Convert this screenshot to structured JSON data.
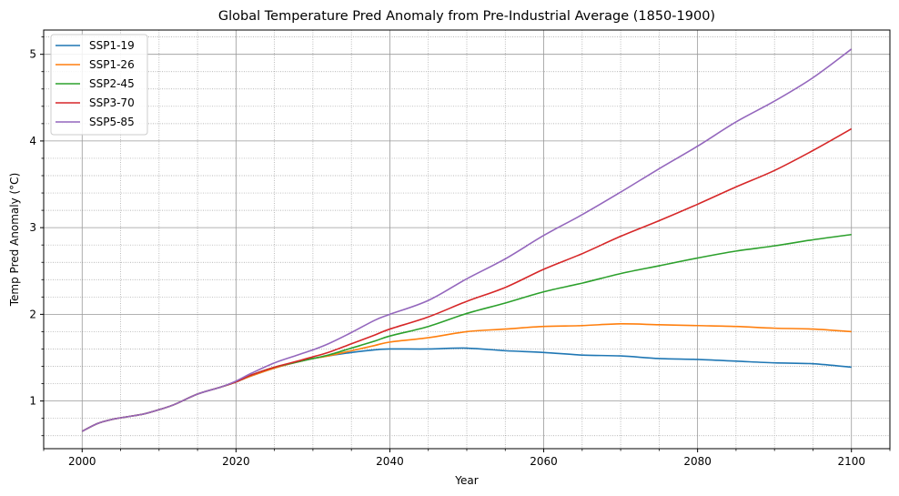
{
  "chart_data": {
    "type": "line",
    "title": "Global Temperature Pred Anomaly from Pre-Industrial Average (1850-1900)",
    "xlabel": "Year",
    "ylabel": "Temp Pred Anomaly (°C)",
    "xlim": [
      1995,
      2105
    ],
    "ylim": [
      0.45,
      5.28
    ],
    "xticks": [
      2000,
      2020,
      2040,
      2060,
      2080,
      2100
    ],
    "yticks": [
      1,
      2,
      3,
      4,
      5
    ],
    "grid": "major solid + minor dotted",
    "legend_position": "top-left",
    "x": [
      2000,
      2002,
      2004,
      2006,
      2008,
      2010,
      2012,
      2015,
      2018,
      2020,
      2022,
      2025,
      2028,
      2030,
      2032,
      2035,
      2038,
      2040,
      2045,
      2050,
      2055,
      2060,
      2065,
      2070,
      2075,
      2080,
      2085,
      2090,
      2095,
      2100
    ],
    "series": [
      {
        "name": "SSP1-19",
        "color": "#1f77b4",
        "values": [
          0.65,
          0.74,
          0.79,
          0.82,
          0.85,
          0.9,
          0.96,
          1.08,
          1.16,
          1.22,
          1.29,
          1.38,
          1.45,
          1.49,
          1.52,
          1.56,
          1.59,
          1.6,
          1.6,
          1.61,
          1.58,
          1.56,
          1.53,
          1.52,
          1.49,
          1.48,
          1.46,
          1.44,
          1.43,
          1.39
        ]
      },
      {
        "name": "SSP1-26",
        "color": "#ff7f0e",
        "values": [
          0.65,
          0.74,
          0.79,
          0.82,
          0.85,
          0.9,
          0.96,
          1.08,
          1.16,
          1.22,
          1.29,
          1.38,
          1.45,
          1.49,
          1.52,
          1.58,
          1.64,
          1.68,
          1.73,
          1.8,
          1.83,
          1.86,
          1.87,
          1.89,
          1.88,
          1.87,
          1.86,
          1.84,
          1.83,
          1.8
        ]
      },
      {
        "name": "SSP2-45",
        "color": "#2ca02c",
        "values": [
          0.65,
          0.74,
          0.79,
          0.82,
          0.85,
          0.9,
          0.96,
          1.08,
          1.16,
          1.22,
          1.3,
          1.39,
          1.45,
          1.49,
          1.53,
          1.61,
          1.69,
          1.75,
          1.86,
          2.01,
          2.13,
          2.26,
          2.36,
          2.47,
          2.56,
          2.65,
          2.73,
          2.79,
          2.86,
          2.92
        ]
      },
      {
        "name": "SSP3-70",
        "color": "#d62728",
        "values": [
          0.65,
          0.74,
          0.79,
          0.82,
          0.85,
          0.9,
          0.96,
          1.08,
          1.16,
          1.22,
          1.3,
          1.39,
          1.46,
          1.51,
          1.56,
          1.66,
          1.76,
          1.83,
          1.97,
          2.15,
          2.31,
          2.52,
          2.7,
          2.9,
          3.08,
          3.27,
          3.47,
          3.66,
          3.89,
          4.14
        ]
      },
      {
        "name": "SSP5-85",
        "color": "#9467bd",
        "values": [
          0.65,
          0.74,
          0.79,
          0.82,
          0.85,
          0.9,
          0.96,
          1.08,
          1.16,
          1.23,
          1.32,
          1.44,
          1.53,
          1.59,
          1.66,
          1.79,
          1.93,
          2.0,
          2.16,
          2.41,
          2.64,
          2.91,
          3.15,
          3.41,
          3.68,
          3.94,
          4.22,
          4.46,
          4.73,
          5.06
        ]
      }
    ]
  }
}
